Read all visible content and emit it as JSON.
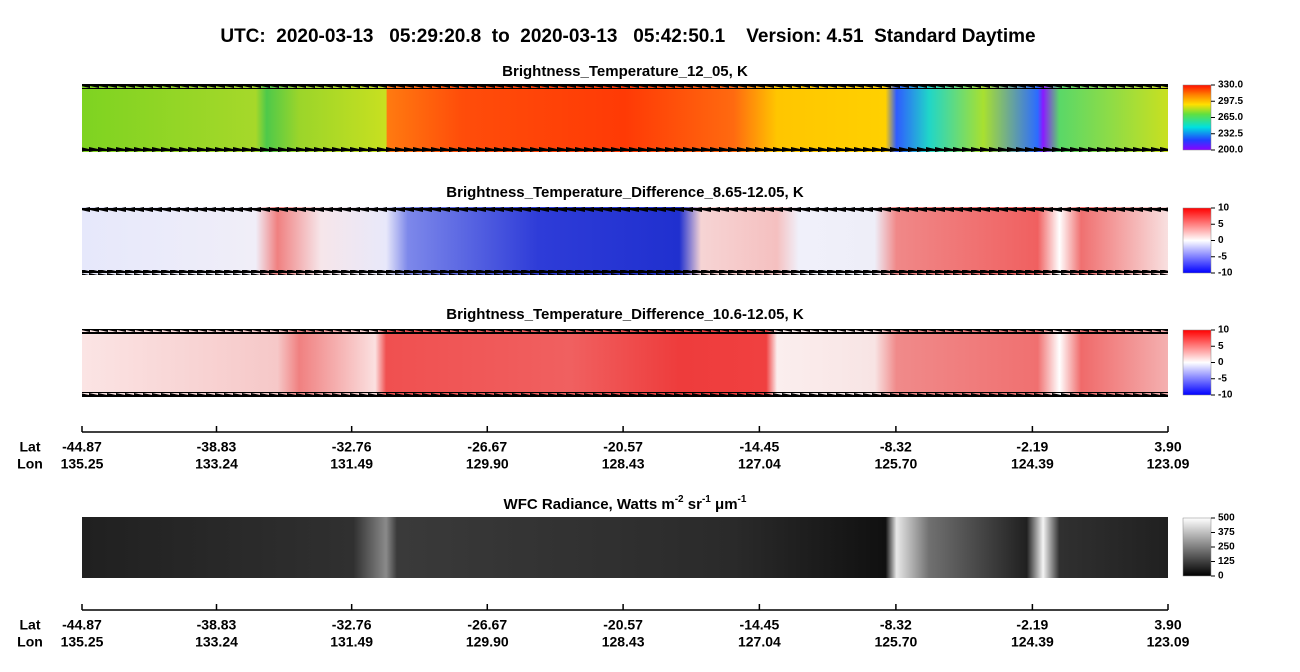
{
  "title": "UTC:  2020-03-13   05:29:20.8  to  2020-03-13   05:42:50.1    Version: 4.51  Standard Daytime",
  "chart_data": [
    {
      "type": "heatmap",
      "title": "Brightness_Temperature_12_05, K",
      "clim": [
        200,
        330
      ],
      "cticks": [
        {
          "value": 330,
          "label": "330.0"
        },
        297.5,
        {
          "value": 265,
          "label": "265.0"
        },
        232.5,
        {
          "value": 200,
          "label": "200.0"
        }
      ]
    },
    {
      "type": "heatmap",
      "title": "Brightness_Temperature_Difference_8.65-12.05, K",
      "clim": [
        -10,
        10
      ],
      "cticks": [
        10,
        5,
        0,
        -5,
        -10
      ]
    },
    {
      "type": "heatmap",
      "title": "Brightness_Temperature_Difference_10.6-12.05, K",
      "clim": [
        -10,
        10
      ],
      "cticks": [
        10,
        5,
        0,
        -5,
        -10
      ]
    },
    {
      "type": "heatmap",
      "title_parts": [
        "WFC Radiance, Watts m",
        "-2",
        " sr",
        "-1",
        " μm",
        "-1"
      ],
      "clim": [
        0,
        500
      ],
      "cticks": [
        500,
        375,
        250,
        125,
        0
      ]
    }
  ],
  "x_axis": {
    "lat_label": "Lat",
    "lon_label": "Lon",
    "xlim": [
      -44.87,
      3.9
    ],
    "lat": [
      -44.87,
      -38.83,
      -32.76,
      -26.67,
      -20.57,
      -14.45,
      -8.32,
      -2.19,
      {
        "value": 3.9,
        "label": "3.90"
      }
    ],
    "lon": [
      135.25,
      133.24,
      131.49,
      {
        "value": 129.9,
        "label": "129.90"
      },
      128.43,
      127.04,
      {
        "value": 125.7,
        "label": "125.70"
      },
      124.39,
      123.09
    ]
  }
}
